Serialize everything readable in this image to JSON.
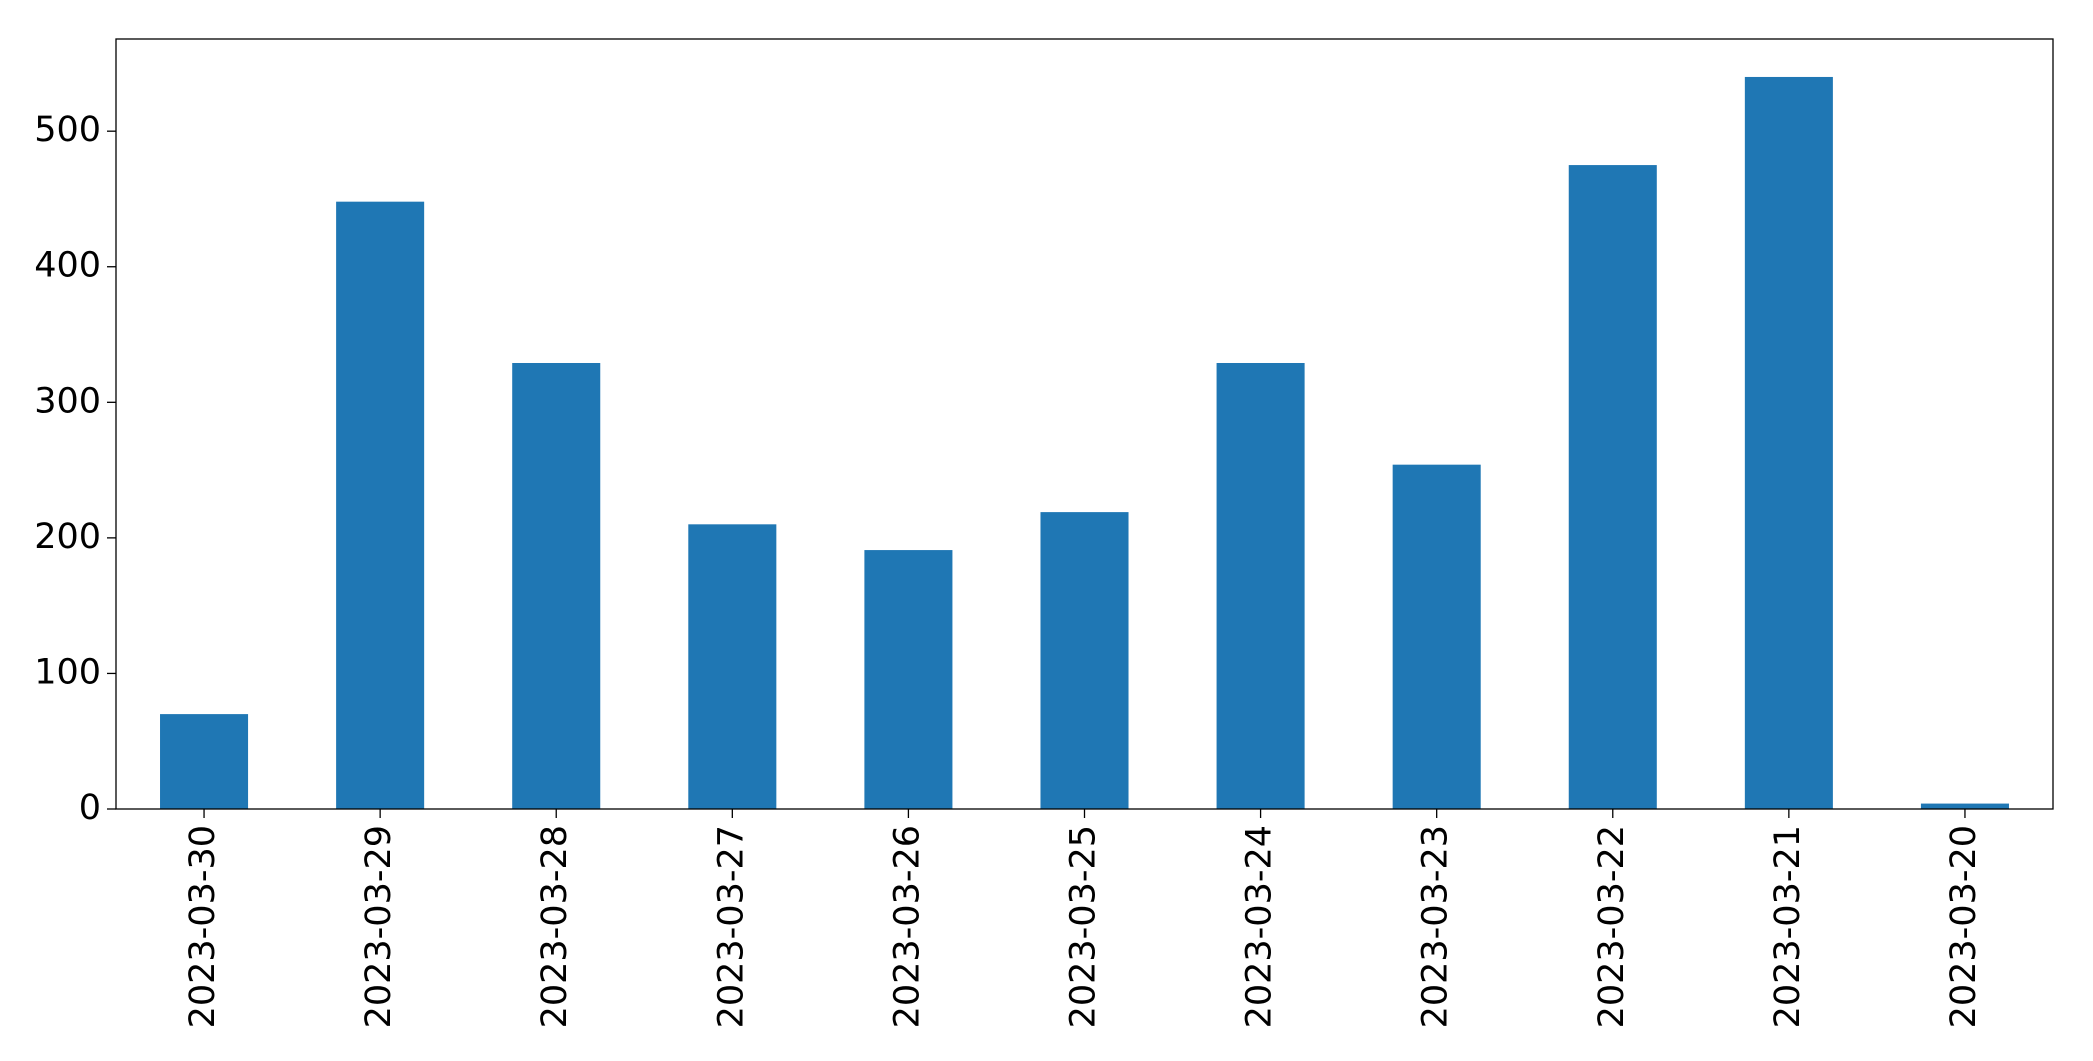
{
  "chart_data": {
    "type": "bar",
    "categories": [
      "2023-03-30",
      "2023-03-29",
      "2023-03-28",
      "2023-03-27",
      "2023-03-26",
      "2023-03-25",
      "2023-03-24",
      "2023-03-23",
      "2023-03-22",
      "2023-03-21",
      "2023-03-20"
    ],
    "values": [
      70,
      448,
      329,
      210,
      191,
      219,
      329,
      254,
      475,
      540,
      4
    ],
    "color": "#1f77b4",
    "ylim": [
      0,
      568
    ],
    "yticks": [
      0,
      100,
      200,
      300,
      400,
      500
    ],
    "grid": false
  }
}
